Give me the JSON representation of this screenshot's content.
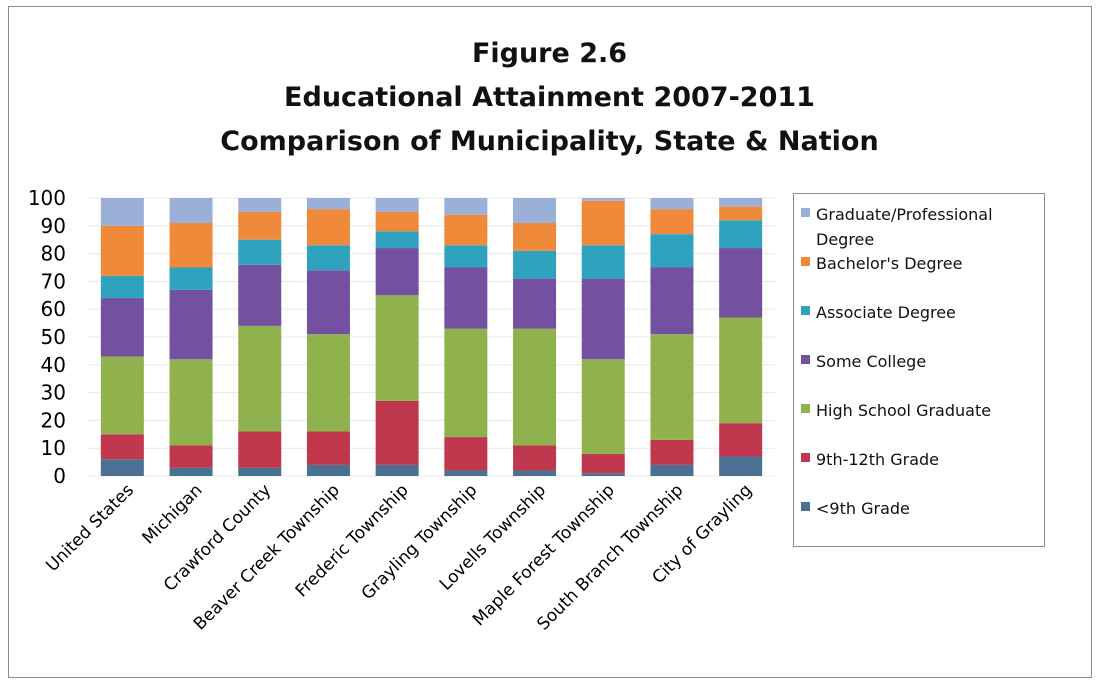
{
  "chart_data": {
    "type": "bar",
    "stacked": true,
    "title_lines": [
      "Figure 2.6",
      "Educational Attainment 2007-2011",
      "Comparison of Municipality, State & Nation"
    ],
    "xlabel": "",
    "ylabel": "",
    "ylim": [
      0,
      100
    ],
    "yticks": [
      "0",
      "10",
      "20",
      "30",
      "40",
      "50",
      "60",
      "70",
      "80",
      "90",
      "100"
    ],
    "grid": true,
    "legend_position": "right",
    "categories": [
      "United States",
      "Michigan",
      "Crawford County",
      "Beaver Creek Township",
      "Frederic Township",
      "Grayling Township",
      "Lovells Township",
      "Maple Forest Township",
      "South Branch Township",
      "City of Grayling"
    ],
    "series": [
      {
        "name": "<9th Grade",
        "color": "#4a7191",
        "values": [
          6,
          3,
          3,
          4,
          4,
          2,
          2,
          1,
          4,
          7
        ]
      },
      {
        "name": "9th-12th Grade",
        "color": "#c0384e",
        "values": [
          9,
          8,
          13,
          12,
          23,
          12,
          9,
          7,
          9,
          12
        ]
      },
      {
        "name": "High School Graduate",
        "color": "#8fb24f",
        "values": [
          28,
          31,
          38,
          35,
          38,
          39,
          42,
          34,
          38,
          38
        ]
      },
      {
        "name": "Some College",
        "color": "#7451a0",
        "values": [
          21,
          25,
          22,
          23,
          17,
          22,
          18,
          29,
          24,
          25
        ]
      },
      {
        "name": "Associate Degree",
        "color": "#2fa3be",
        "values": [
          8,
          8,
          9,
          9,
          6,
          8,
          10,
          12,
          12,
          10
        ]
      },
      {
        "name": "Bachelor's Degree",
        "color": "#ee8a3a",
        "values": [
          18,
          16,
          10,
          13,
          7,
          11,
          10,
          16,
          9,
          5
        ]
      },
      {
        "name": "Graduate/Professional Degree",
        "color": "#9bb0d9",
        "values": [
          10,
          9,
          5,
          4,
          5,
          6,
          9,
          1,
          4,
          3
        ]
      }
    ]
  },
  "legend": {
    "items": [
      {
        "label": "Graduate/Professional Degree",
        "color": "#9bb0d9"
      },
      {
        "label": "Bachelor's Degree",
        "color": "#ee8a3a"
      },
      {
        "label": "Associate Degree",
        "color": "#2fa3be"
      },
      {
        "label": "Some College",
        "color": "#7451a0"
      },
      {
        "label": "High School Graduate",
        "color": "#8fb24f"
      },
      {
        "label": "9th-12th Grade",
        "color": "#c0384e"
      },
      {
        "label": "<9th Grade",
        "color": "#4a7191"
      }
    ]
  }
}
